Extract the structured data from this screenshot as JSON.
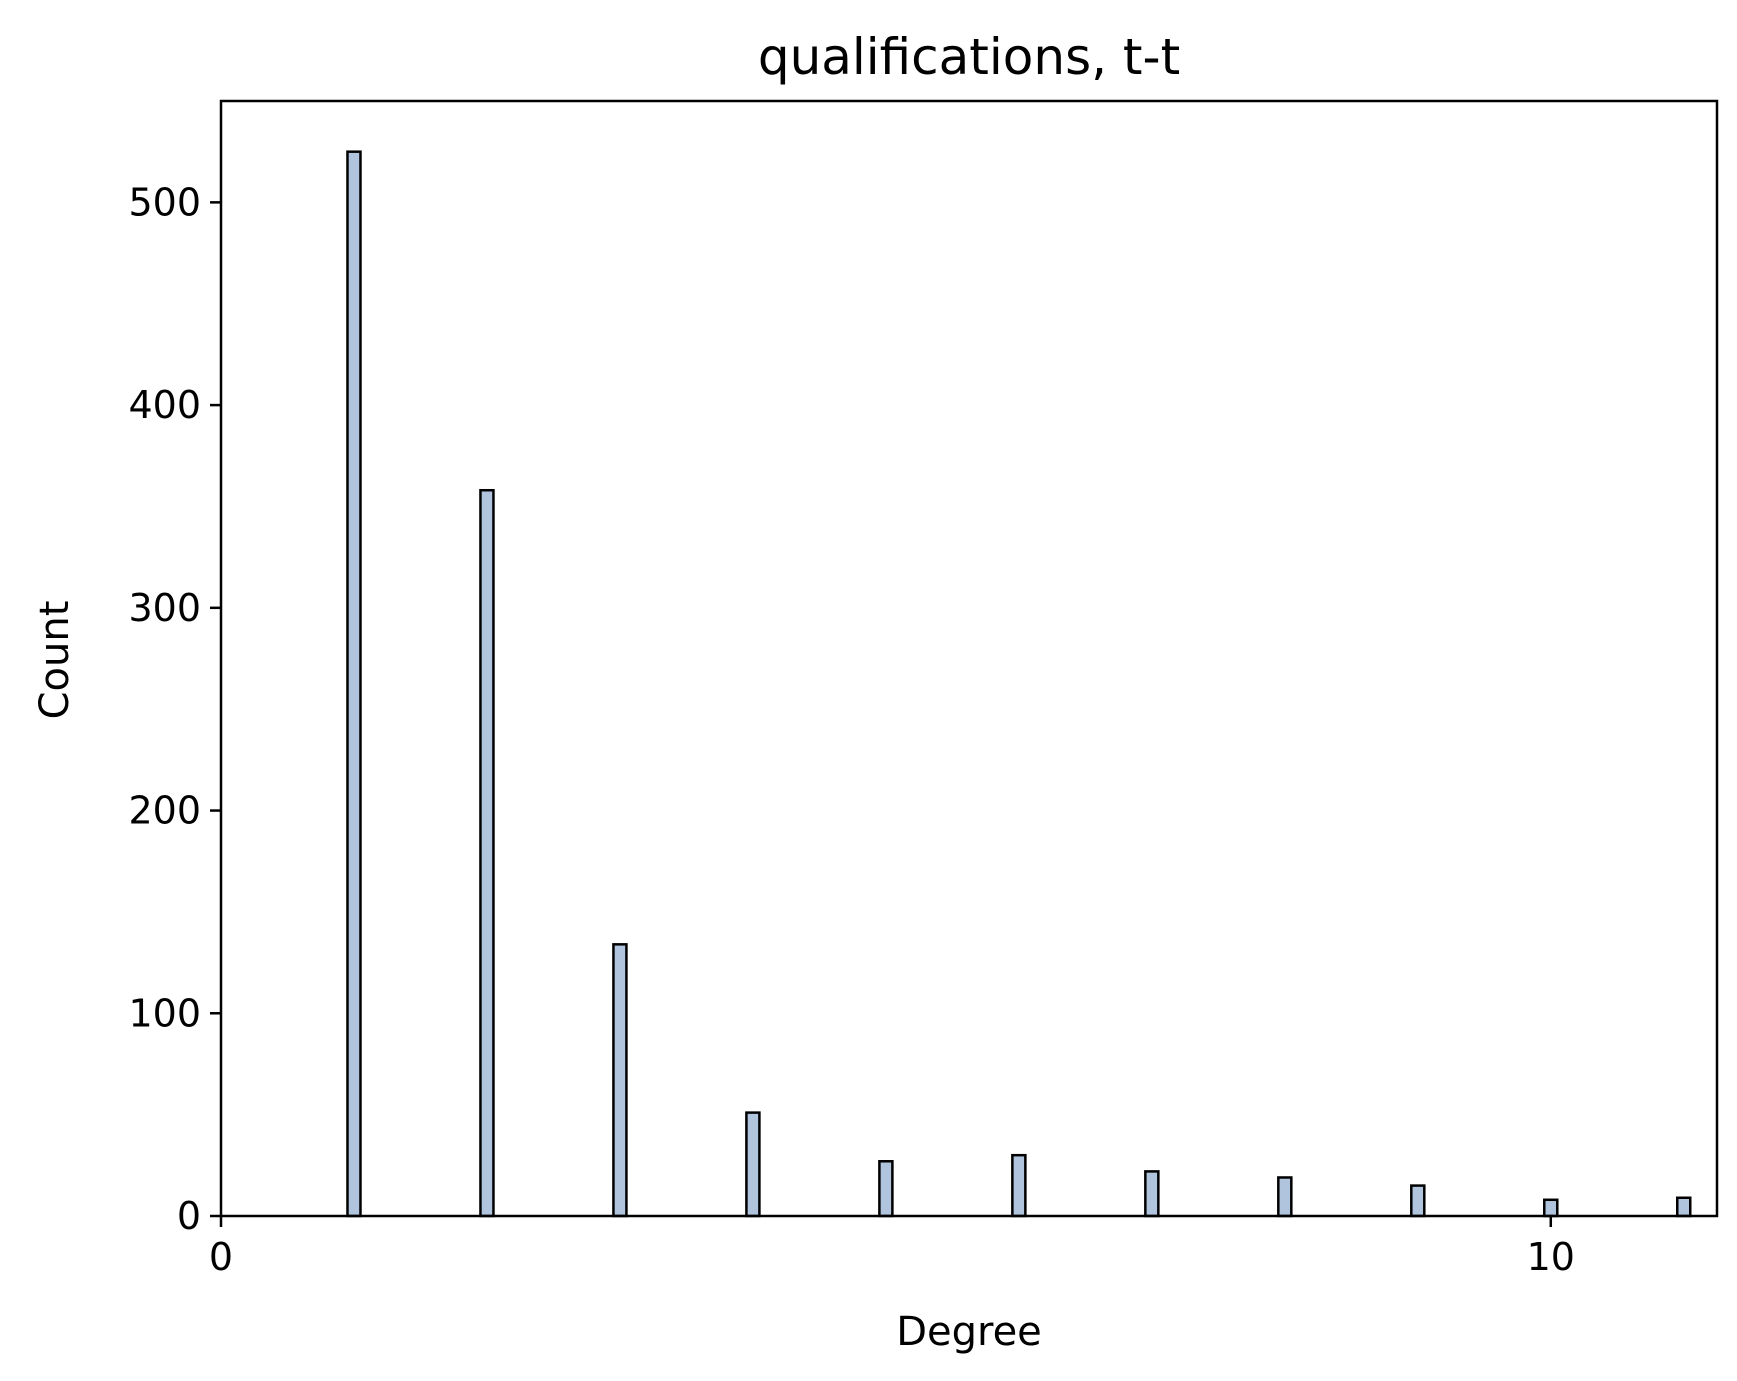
{
  "chart_data": {
    "type": "bar",
    "title": "qualifications, t-t",
    "xlabel": "Degree",
    "ylabel": "Count",
    "x": [
      1,
      2,
      3,
      4,
      5,
      6,
      7,
      8,
      9,
      10,
      11
    ],
    "values": [
      525,
      358,
      134,
      51,
      27,
      30,
      22,
      19,
      15,
      8,
      9
    ],
    "xlim": [
      0,
      11.25
    ],
    "ylim": [
      0,
      550
    ],
    "xticks": [
      0,
      10
    ],
    "yticks": [
      0,
      100,
      200,
      300,
      400,
      500
    ],
    "bar_color": "#b0c4de",
    "edge_color": "#000000",
    "grid": false
  }
}
